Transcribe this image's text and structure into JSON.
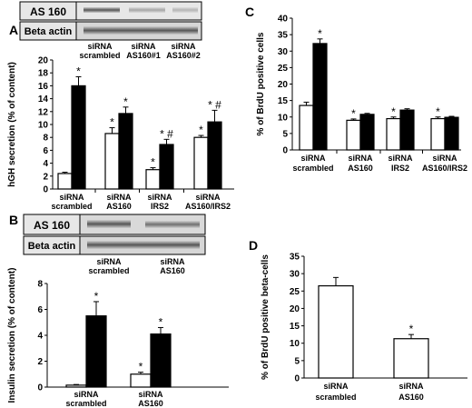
{
  "panels": {
    "a": "A",
    "b": "B",
    "c": "C",
    "d": "D"
  },
  "blot_labels": {
    "a_top": "AS 160",
    "a_bottom": "Beta actin",
    "b_top": "AS 160",
    "b_bottom": "Beta actin"
  },
  "lane_labels": {
    "a": [
      [
        "siRNA",
        "scrambled"
      ],
      [
        "siRNA",
        "AS160#1"
      ],
      [
        "siRNA",
        "AS160#2"
      ]
    ],
    "b": [
      [
        "siRNA",
        "scrambled"
      ],
      [
        "siRNA",
        "AS160"
      ]
    ]
  },
  "chart_data": [
    {
      "id": "A",
      "type": "bar",
      "ylabel": "hGH secretion (% of content)",
      "ylim": [
        0,
        20
      ],
      "yticks": [
        "0",
        "2",
        "4",
        "6",
        "8",
        "10",
        "12",
        "14",
        "16",
        "18",
        "20"
      ],
      "categories": [
        [
          "siRNA",
          "scrambled"
        ],
        [
          "siRNA",
          "AS160"
        ],
        [
          "siRNA",
          "IRS2"
        ],
        [
          "siRNA",
          "AS160/IRS2"
        ]
      ],
      "series": [
        {
          "fill": "#ffffff",
          "values": [
            2.4,
            8.6,
            3.0,
            8.0
          ],
          "errors": [
            0.2,
            0.9,
            0.3,
            0.3
          ],
          "marks": [
            "",
            "*",
            "*",
            "*"
          ]
        },
        {
          "fill": "#000000",
          "values": [
            16.0,
            11.7,
            6.9,
            10.4
          ],
          "errors": [
            1.4,
            1.0,
            0.8,
            1.8
          ],
          "marks": [
            "*",
            "*",
            "* #",
            "* #"
          ]
        }
      ]
    },
    {
      "id": "B",
      "type": "bar",
      "ylabel": "Insulin secretion (% of content)",
      "ylim": [
        0,
        8
      ],
      "yticks": [
        "0",
        "2",
        "4",
        "6",
        "8"
      ],
      "categories": [
        [
          "siRNA",
          "scrambled"
        ],
        [
          "siRNA",
          "AS160"
        ]
      ],
      "series": [
        {
          "fill": "#ffffff",
          "values": [
            0.15,
            1.0
          ],
          "errors": [
            0.05,
            0.15
          ],
          "marks": [
            "",
            "*"
          ]
        },
        {
          "fill": "#000000",
          "values": [
            5.5,
            4.1
          ],
          "errors": [
            1.1,
            0.5
          ],
          "marks": [
            "*",
            "*"
          ]
        }
      ]
    },
    {
      "id": "C",
      "type": "bar",
      "ylabel": "% of BrdU positive cells",
      "ylim": [
        0,
        40
      ],
      "yticks": [
        "0",
        "5",
        "10",
        "15",
        "20",
        "25",
        "30",
        "35",
        "40"
      ],
      "categories": [
        [
          "siRNA",
          "scrambled"
        ],
        [
          "siRNA",
          "AS160"
        ],
        [
          "siRNA",
          "IRS2"
        ],
        [
          "siRNA",
          "AS160/IRS2"
        ]
      ],
      "series": [
        {
          "fill": "#ffffff",
          "values": [
            13.5,
            9.0,
            9.5,
            9.5
          ],
          "errors": [
            1.0,
            0.4,
            0.5,
            0.5
          ],
          "marks": [
            "",
            "*",
            "*",
            "*"
          ]
        },
        {
          "fill": "#000000",
          "values": [
            32.3,
            10.8,
            12.1,
            9.9
          ],
          "errors": [
            1.4,
            0.3,
            0.4,
            0.3
          ],
          "marks": [
            "*",
            "",
            "",
            ""
          ]
        }
      ]
    },
    {
      "id": "D",
      "type": "bar",
      "ylabel": "% of BrdU positive beta-cells",
      "ylim": [
        0,
        35
      ],
      "yticks": [
        "0",
        "5",
        "10",
        "15",
        "20",
        "25",
        "30",
        "35"
      ],
      "categories": [
        [
          "siRNA",
          "scrambled"
        ],
        [
          "siRNA",
          "AS160"
        ]
      ],
      "series": [
        {
          "fill": "#ffffff",
          "values": [
            26.5,
            11.3
          ],
          "errors": [
            2.4,
            1.2
          ],
          "marks": [
            "",
            "*"
          ]
        }
      ]
    }
  ]
}
